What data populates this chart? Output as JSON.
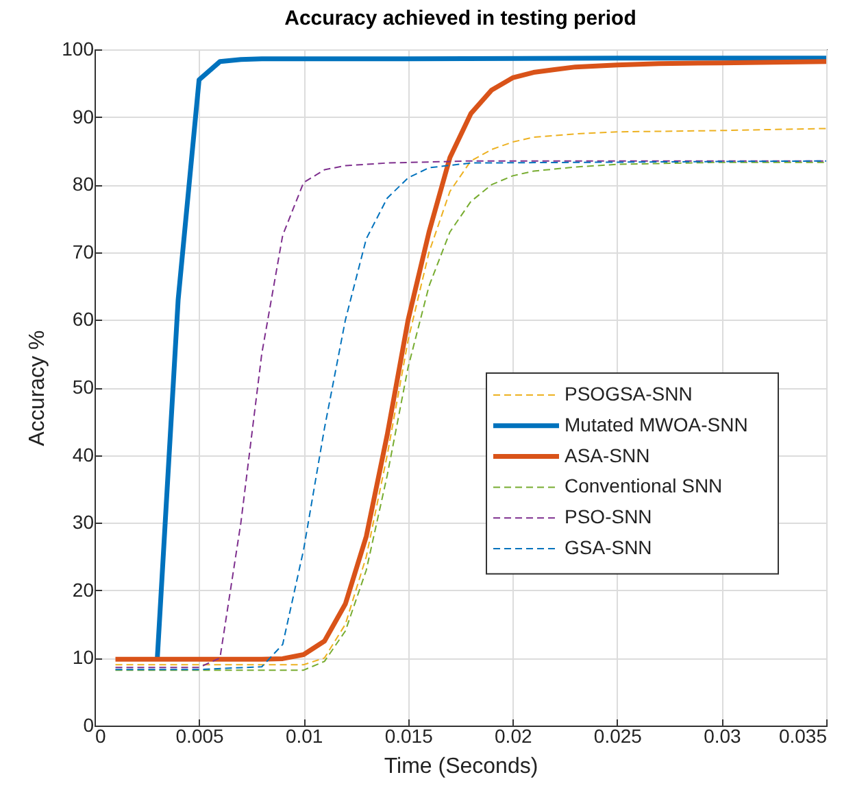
{
  "chart_data": {
    "type": "line",
    "title": "Accuracy achieved in testing period",
    "xlabel": "Time (Seconds)",
    "ylabel": "Accuracy %",
    "xlim": [
      0,
      0.035
    ],
    "xticks": [
      0,
      0.005,
      0.01,
      0.015,
      0.02,
      0.025,
      0.03,
      0.035
    ],
    "ylim": [
      0,
      100
    ],
    "yticks": [
      0,
      10,
      20,
      30,
      40,
      50,
      60,
      70,
      80,
      90,
      100
    ],
    "grid": true,
    "legend": "right",
    "marker": "none",
    "series": [
      {
        "name": "PSOGSA-SNN",
        "color": "#edb120",
        "line_style": "dashed",
        "x": [
          0.001,
          0.005,
          0.01,
          0.011,
          0.012,
          0.013,
          0.014,
          0.015,
          0.016,
          0.017,
          0.018,
          0.019,
          0.02,
          0.021,
          0.023,
          0.025,
          0.03,
          0.035
        ],
        "values": [
          9,
          9,
          9,
          10,
          15,
          25,
          40,
          57,
          70,
          79,
          83.5,
          85.2,
          86.3,
          87,
          87.5,
          87.8,
          88,
          88.3
        ]
      },
      {
        "name": "Mutated MWOA-SNN",
        "color": "#0072bd",
        "line_style": "solid",
        "x": [
          0.003,
          0.004,
          0.005,
          0.006,
          0.007,
          0.008,
          0.015,
          0.025,
          0.035
        ],
        "values": [
          9.8,
          63,
          95.5,
          98.2,
          98.5,
          98.6,
          98.6,
          98.7,
          98.7
        ]
      },
      {
        "name": "ASA-SNN",
        "color": "#d95319",
        "line_style": "solid",
        "x": [
          0.001,
          0.005,
          0.008,
          0.009,
          0.01,
          0.011,
          0.012,
          0.013,
          0.014,
          0.015,
          0.016,
          0.017,
          0.018,
          0.019,
          0.02,
          0.021,
          0.022,
          0.023,
          0.025,
          0.027,
          0.03,
          0.035
        ],
        "values": [
          9.8,
          9.8,
          9.8,
          9.9,
          10.5,
          12.5,
          18,
          28,
          43,
          60,
          73,
          84,
          90.5,
          94,
          95.8,
          96.6,
          97,
          97.4,
          97.7,
          97.9,
          98,
          98.2
        ]
      },
      {
        "name": "Conventional SNN",
        "color": "#77ac30",
        "line_style": "dashed",
        "x": [
          0.001,
          0.005,
          0.01,
          0.011,
          0.012,
          0.013,
          0.014,
          0.015,
          0.016,
          0.017,
          0.018,
          0.019,
          0.02,
          0.021,
          0.023,
          0.025,
          0.03,
          0.035
        ],
        "values": [
          8.2,
          8.2,
          8.2,
          9.5,
          14,
          23,
          37,
          53,
          65,
          73,
          77.5,
          80,
          81.3,
          82,
          82.6,
          83,
          83.3,
          83.3
        ]
      },
      {
        "name": "PSO-SNN",
        "color": "#7e2f8e",
        "line_style": "dashed",
        "x": [
          0.001,
          0.005,
          0.006,
          0.007,
          0.008,
          0.009,
          0.01,
          0.011,
          0.012,
          0.014,
          0.018,
          0.035
        ],
        "values": [
          8.6,
          8.6,
          10,
          30,
          55,
          72.5,
          80.3,
          82.2,
          82.8,
          83.2,
          83.5,
          83.5
        ]
      },
      {
        "name": "GSA-SNN",
        "color": "#0072bd",
        "line_style": "dashed",
        "x": [
          0.001,
          0.005,
          0.008,
          0.009,
          0.01,
          0.011,
          0.012,
          0.013,
          0.014,
          0.015,
          0.016,
          0.018,
          0.035
        ],
        "values": [
          8.3,
          8.3,
          8.7,
          12,
          26,
          44,
          60,
          72,
          78,
          81,
          82.5,
          83.2,
          83.5
        ]
      }
    ]
  }
}
